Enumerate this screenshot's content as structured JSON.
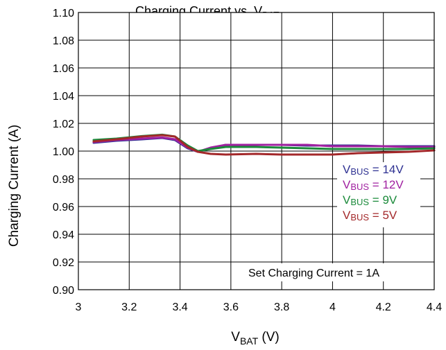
{
  "chart_data": {
    "type": "line",
    "title": "Charging Current vs. V<sub>BAT</sub>",
    "xlabel": {
      "main": "V",
      "sub": "BAT",
      "suffix": " (V)"
    },
    "ylabel": "Charging Current (A)",
    "xlim": [
      3.0,
      4.4
    ],
    "ylim": [
      0.9,
      1.1
    ],
    "xticks": [
      "3",
      "3.2",
      "3.4",
      "3.6",
      "3.8",
      "4",
      "4.2",
      "4.4"
    ],
    "yticks": [
      "0.90",
      "0.92",
      "0.94",
      "0.96",
      "0.98",
      "1.00",
      "1.02",
      "1.04",
      "1.06",
      "1.08",
      "1.10"
    ],
    "grid": true,
    "annotation": "Set Charging Current = 1A",
    "legend_position": "right",
    "series": [
      {
        "name": "VBUS = 14V",
        "label_main": "V",
        "label_sub": "BUS",
        "label_rest": " = 14V",
        "color": "#2e3192",
        "x": [
          3.06,
          3.15,
          3.25,
          3.33,
          3.38,
          3.43,
          3.47,
          3.52,
          3.58,
          3.7,
          3.8,
          3.9,
          4.0,
          4.1,
          4.2,
          4.3,
          4.4
        ],
        "y": [
          1.006,
          1.0075,
          1.0085,
          1.0095,
          1.008,
          1.002,
          0.9995,
          1.002,
          1.0045,
          1.0045,
          1.0045,
          1.004,
          1.004,
          1.004,
          1.0035,
          1.0035,
          1.0035
        ]
      },
      {
        "name": "VBUS = 12V",
        "label_main": "V",
        "label_sub": "BUS",
        "label_rest": " = 12V",
        "color": "#a020a0",
        "x": [
          3.06,
          3.15,
          3.25,
          3.33,
          3.38,
          3.43,
          3.47,
          3.52,
          3.58,
          3.7,
          3.8,
          3.9,
          4.0,
          4.1,
          4.2,
          4.3,
          4.4
        ],
        "y": [
          1.0065,
          1.008,
          1.009,
          1.0098,
          1.0085,
          1.0025,
          0.9995,
          1.0025,
          1.0045,
          1.0045,
          1.0045,
          1.0045,
          1.0035,
          1.0035,
          1.0035,
          1.003,
          1.003
        ]
      },
      {
        "name": "VBUS = 9V",
        "label_main": "V",
        "label_sub": "BUS",
        "label_rest": " = 9V",
        "color": "#1a8a3a",
        "x": [
          3.06,
          3.15,
          3.25,
          3.33,
          3.38,
          3.43,
          3.47,
          3.52,
          3.58,
          3.7,
          3.8,
          3.9,
          4.0,
          4.1,
          4.2,
          4.3,
          4.4
        ],
        "y": [
          1.008,
          1.009,
          1.0108,
          1.0118,
          1.0105,
          1.004,
          1.0,
          1.0015,
          1.003,
          1.003,
          1.0025,
          1.002,
          1.0015,
          1.0015,
          1.0015,
          1.0015,
          1.002
        ]
      },
      {
        "name": "VBUS = 5V",
        "label_main": "V",
        "label_sub": "BUS",
        "label_rest": " = 5V",
        "color": "#a3282a",
        "x": [
          3.06,
          3.15,
          3.25,
          3.33,
          3.38,
          3.43,
          3.47,
          3.52,
          3.58,
          3.7,
          3.8,
          3.9,
          4.0,
          4.1,
          4.2,
          4.3,
          4.4
        ],
        "y": [
          1.007,
          1.0085,
          1.0105,
          1.0115,
          1.0105,
          1.003,
          0.9995,
          0.998,
          0.9975,
          0.998,
          0.9975,
          0.9975,
          0.9975,
          0.9985,
          0.999,
          0.9995,
          1.0005
        ]
      }
    ]
  }
}
